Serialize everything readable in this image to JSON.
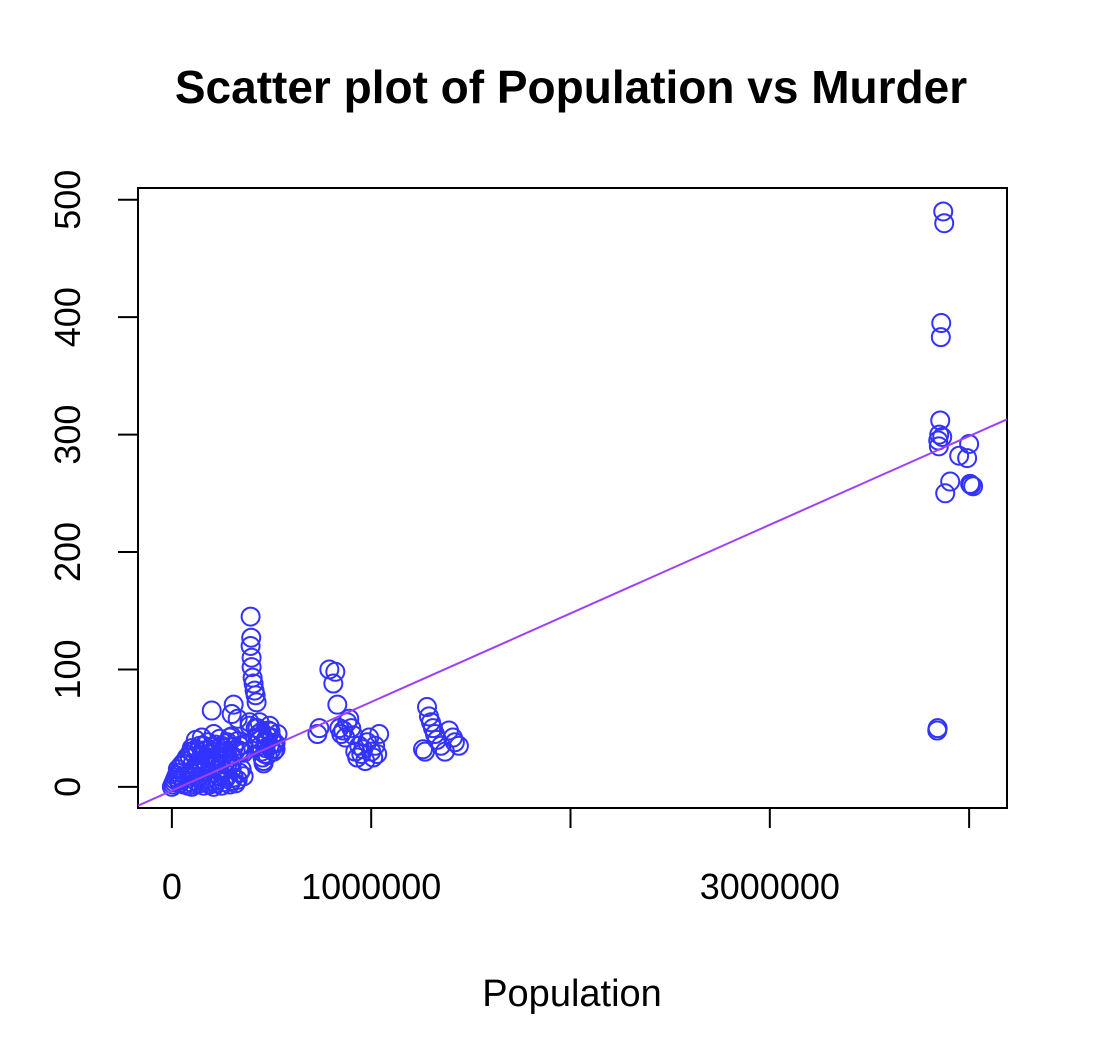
{
  "chart_data": {
    "type": "scatter",
    "title": "Scatter plot of Population vs Murder",
    "xlabel": "Population",
    "ylabel": "",
    "xlim": [
      -170000,
      4190000
    ],
    "ylim": [
      -18,
      510
    ],
    "x_ticks": [
      0,
      1000000,
      2000000,
      3000000,
      4000000
    ],
    "x_tick_labels": [
      "0",
      "1000000",
      "",
      "3000000",
      ""
    ],
    "y_ticks": [
      0,
      100,
      200,
      300,
      400,
      500
    ],
    "y_tick_labels": [
      "0",
      "100",
      "200",
      "300",
      "400",
      "500"
    ],
    "grid": false,
    "legend": "none",
    "point_color": "#3333ff",
    "line_color": "#a040ff",
    "regression_line": {
      "x": [
        -170000,
        4190000
      ],
      "y": [
        -16,
        313
      ]
    },
    "series": [
      {
        "x": [
          0,
          5000,
          10000,
          15000,
          20000,
          25000,
          30000,
          35000,
          40000,
          50000,
          60000,
          70000,
          80000,
          90000,
          100000,
          30000,
          45000,
          55000,
          65000,
          75000,
          85000,
          95000,
          110000,
          120000,
          130000,
          140000,
          150000,
          160000,
          170000,
          180000,
          190000,
          200000,
          210000,
          220000,
          230000,
          240000,
          250000,
          260000,
          270000,
          280000,
          290000,
          300000,
          310000,
          320000,
          330000,
          340000,
          350000,
          360000,
          100000,
          110000,
          120000,
          130000,
          140000,
          150000,
          160000,
          170000,
          180000,
          190000,
          200000,
          210000,
          220000,
          230000,
          240000,
          250000,
          260000,
          270000,
          280000,
          290000,
          300000,
          100000,
          120000,
          140000,
          160000,
          180000,
          200000,
          220000,
          240000,
          260000,
          280000,
          300000,
          320000,
          340000,
          360000,
          120000,
          150000,
          180000,
          210000,
          240000,
          270000,
          300000,
          330000,
          360000,
          100000,
          130000,
          160000,
          190000,
          220000,
          250000,
          280000,
          310000,
          340000,
          150000,
          200000,
          250000,
          300000,
          350000,
          90000,
          105000,
          200000,
          290000,
          300000,
          310000,
          330000,
          390000,
          390000,
          395000,
          395000,
          398000,
          400000,
          400000,
          405000,
          410000,
          415000,
          420000,
          425000,
          430000,
          435000,
          440000,
          445000,
          450000,
          455000,
          460000,
          465000,
          470000,
          475000,
          480000,
          485000,
          490000,
          495000,
          500000,
          510000,
          520000,
          530000,
          420000,
          440000,
          460000,
          480000,
          500000,
          520000,
          430000,
          450000,
          470000,
          490000,
          510000,
          730000,
          740000,
          790000,
          810000,
          820000,
          830000,
          840000,
          850000,
          860000,
          870000,
          880000,
          890000,
          900000,
          910000,
          920000,
          930000,
          940000,
          950000,
          960000,
          970000,
          980000,
          990000,
          1000000,
          1010000,
          1020000,
          1030000,
          1040000,
          1260000,
          1270000,
          1280000,
          1290000,
          1300000,
          1310000,
          1320000,
          1330000,
          1350000,
          1370000,
          1390000,
          1410000,
          1420000,
          1440000,
          3840000,
          3842000,
          3845000,
          3848000,
          3850000,
          3855000,
          3858000,
          3860000,
          3865000,
          3870000,
          3875000,
          3880000,
          3905000,
          3950000,
          3990000,
          4000000,
          4005000,
          4010000,
          4020000
        ],
        "y": [
          0,
          2,
          4,
          6,
          8,
          10,
          12,
          5,
          3,
          7,
          2,
          9,
          1,
          4,
          0,
          15,
          18,
          20,
          22,
          25,
          27,
          30,
          2,
          5,
          8,
          3,
          6,
          1,
          4,
          7,
          2,
          5,
          0,
          3,
          6,
          9,
          1,
          4,
          7,
          10,
          2,
          5,
          8,
          3,
          6,
          12,
          15,
          9,
          12,
          14,
          18,
          20,
          22,
          16,
          13,
          19,
          24,
          21,
          17,
          23,
          26,
          14,
          19,
          22,
          28,
          25,
          20,
          18,
          15,
          30,
          32,
          35,
          31,
          28,
          34,
          36,
          29,
          33,
          38,
          27,
          31,
          35,
          29,
          40,
          42,
          38,
          45,
          41,
          37,
          43,
          39,
          36,
          33,
          30,
          35,
          28,
          32,
          29,
          26,
          34,
          31,
          27,
          25,
          35,
          20,
          30,
          25,
          20,
          65,
          42,
          62,
          70,
          58,
          52,
          55,
          145,
          120,
          127,
          110,
          102,
          93,
          88,
          82,
          78,
          72,
          50,
          45,
          40,
          35,
          30,
          25,
          20,
          28,
          33,
          38,
          43,
          48,
          52,
          47,
          42,
          37,
          32,
          45,
          50,
          55,
          22,
          27,
          32,
          37,
          42,
          47,
          40,
          35,
          30,
          45,
          50,
          100,
          88,
          98,
          70,
          50,
          45,
          48,
          42,
          55,
          58,
          50,
          44,
          30,
          25,
          35,
          28,
          32,
          22,
          38,
          42,
          30,
          25,
          35,
          28,
          45,
          32,
          30,
          68,
          60,
          55,
          50,
          45,
          40,
          35,
          30,
          48,
          42,
          38,
          35,
          48,
          50,
          295,
          290,
          300,
          312,
          383,
          395,
          298,
          490,
          480,
          250,
          260,
          282,
          280,
          292,
          258,
          257,
          256
        ]
      }
    ]
  }
}
